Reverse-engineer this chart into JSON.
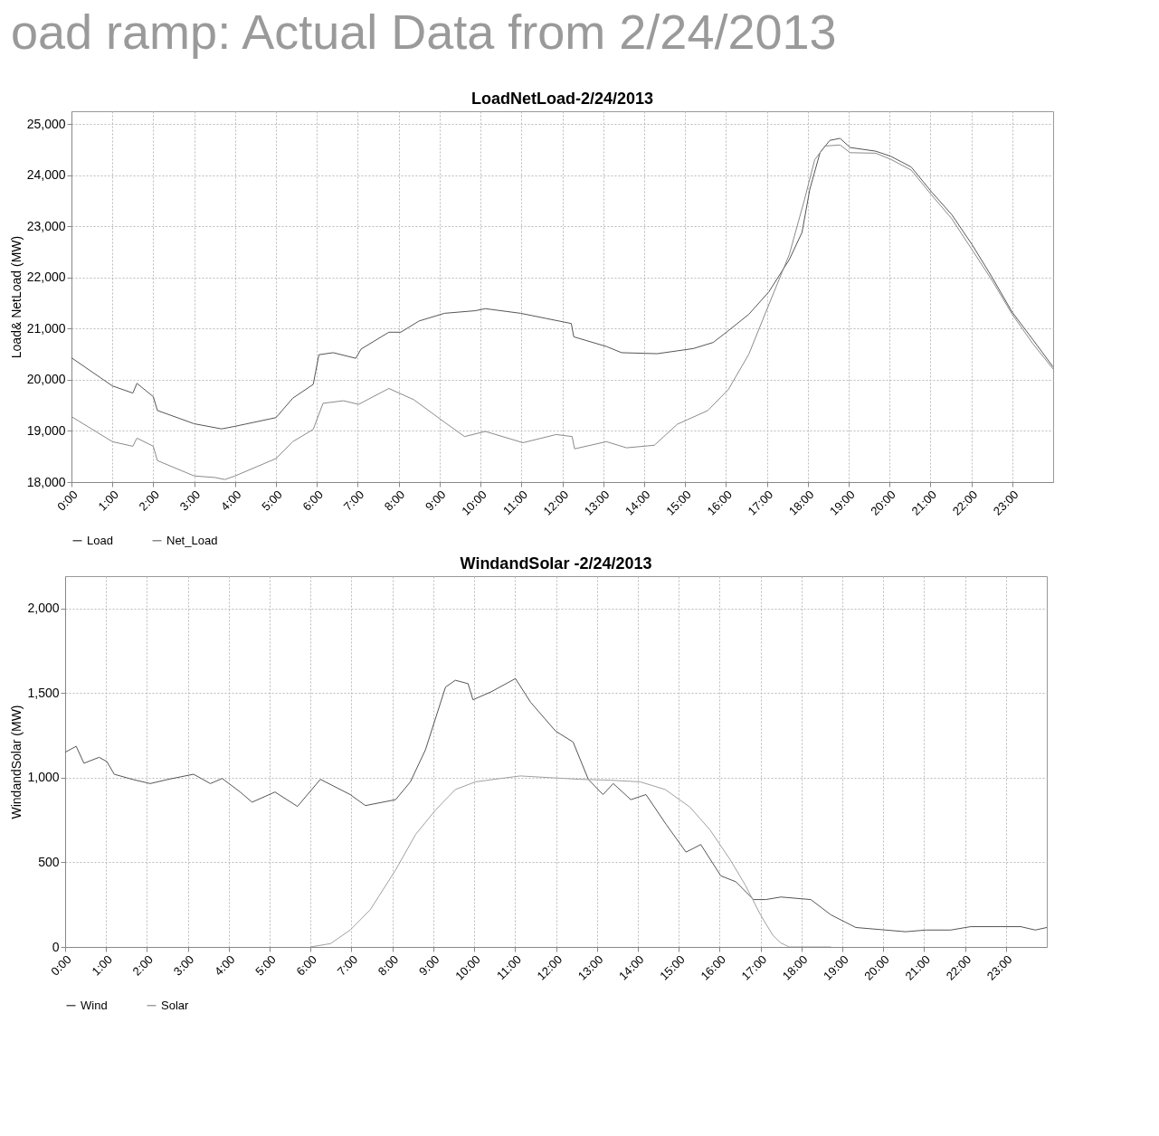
{
  "chart_data": [
    {
      "type": "other",
      "title": "oad ramp: Actual Data from 2/24/2013"
    },
    {
      "type": "line",
      "title": "LoadNetLoad-2/24/2013",
      "ylabel": "Load& NetLoad (MW)",
      "xlim": [
        0,
        24
      ],
      "xticks": [
        {
          "value": 0,
          "label": "0:00"
        },
        {
          "value": 1,
          "label": "1:00"
        },
        {
          "value": 2,
          "label": "2:00"
        },
        {
          "value": 3,
          "label": "3:00"
        },
        {
          "value": 4,
          "label": "4:00"
        },
        {
          "value": 5,
          "label": "5:00"
        },
        {
          "value": 6,
          "label": "6:00"
        },
        {
          "value": 7,
          "label": "7:00"
        },
        {
          "value": 8,
          "label": "8:00"
        },
        {
          "value": 9,
          "label": "9:00"
        },
        {
          "value": 10,
          "label": "10:00"
        },
        {
          "value": 11,
          "label": "11:00"
        },
        {
          "value": 12,
          "label": "12:00"
        },
        {
          "value": 13,
          "label": "13:00"
        },
        {
          "value": 14,
          "label": "14:00"
        },
        {
          "value": 15,
          "label": "15:00"
        },
        {
          "value": 16,
          "label": "16:00"
        },
        {
          "value": 17,
          "label": "17:00"
        },
        {
          "value": 18,
          "label": "18:00"
        },
        {
          "value": 19,
          "label": "19:00"
        },
        {
          "value": 20,
          "label": "20:00"
        },
        {
          "value": 21,
          "label": "21:00"
        },
        {
          "value": 22,
          "label": "22:00"
        },
        {
          "value": 23,
          "label": "23:00"
        }
      ],
      "ylim": [
        18000,
        25250
      ],
      "yticks": [
        {
          "value": 18000,
          "label": "18,000"
        },
        {
          "value": 19000,
          "label": "19,000"
        },
        {
          "value": 20000,
          "label": "20,000"
        },
        {
          "value": 21000,
          "label": "21,000"
        },
        {
          "value": 22000,
          "label": "22,000"
        },
        {
          "value": 23000,
          "label": "23,000"
        },
        {
          "value": 24000,
          "label": "24,000"
        },
        {
          "value": 25000,
          "label": "25,000"
        }
      ],
      "grid": true,
      "legend": "bottom",
      "series": [
        {
          "name": "Load",
          "color": "#555555",
          "x": [
            0,
            1,
            1.5,
            1.6,
            2,
            2.1,
            3,
            3.67,
            4,
            5,
            5.41,
            5.91,
            6.05,
            6.4,
            6.95,
            7.08,
            7.76,
            8.05,
            8.5,
            9.12,
            9.87,
            10.12,
            10.98,
            11.6,
            12.22,
            12.28,
            13.08,
            13.45,
            14.32,
            15.2,
            15.69,
            16.06,
            16.56,
            17.05,
            17.55,
            17.86,
            18.05,
            18.3,
            18.54,
            18.79,
            19.04,
            19.66,
            20.03,
            20.53,
            21.03,
            21.52,
            22.02,
            22.51,
            23.0,
            23.5,
            24.0
          ],
          "values": [
            20430,
            19880,
            19740,
            19930,
            19670,
            19400,
            19140,
            19040,
            19090,
            19260,
            19640,
            19910,
            20490,
            20530,
            20420,
            20600,
            20930,
            20930,
            21150,
            21300,
            21350,
            21390,
            21300,
            21200,
            21100,
            20840,
            20650,
            20530,
            20510,
            20610,
            20730,
            20960,
            21280,
            21720,
            22350,
            22880,
            23720,
            24440,
            24680,
            24720,
            24540,
            24470,
            24370,
            24160,
            23670,
            23230,
            22640,
            22000,
            21320,
            20790,
            20250
          ]
        },
        {
          "name": "Net_Load",
          "color": "#8a8a8a",
          "x": [
            0,
            1,
            1.5,
            1.6,
            2,
            2.1,
            3,
            3.5,
            3.75,
            4,
            5,
            5.41,
            5.91,
            6.15,
            6.65,
            7.02,
            7.76,
            8.37,
            9.12,
            9.61,
            10.12,
            11.04,
            11.85,
            12.24,
            12.3,
            13.08,
            13.57,
            14.25,
            14.81,
            15.56,
            16.06,
            16.56,
            17.05,
            17.55,
            17.92,
            18.17,
            18.42,
            18.79,
            19.04,
            19.66,
            20.03,
            20.53,
            21.03,
            21.52,
            22.02,
            22.51,
            23.0,
            23.5,
            24.0
          ],
          "values": [
            19280,
            18790,
            18700,
            18860,
            18700,
            18420,
            18120,
            18090,
            18050,
            18120,
            18460,
            18790,
            19030,
            19540,
            19590,
            19520,
            19830,
            19610,
            19170,
            18890,
            18990,
            18770,
            18930,
            18890,
            18650,
            18790,
            18670,
            18720,
            19130,
            19400,
            19810,
            20500,
            21470,
            22450,
            23520,
            24300,
            24570,
            24590,
            24440,
            24430,
            24310,
            24100,
            23610,
            23150,
            22540,
            21940,
            21280,
            20710,
            20210
          ]
        }
      ]
    },
    {
      "type": "line",
      "title": "WindandSolar -2/24/2013",
      "ylabel": "WindandSolar (MW)",
      "xlim": [
        0,
        24
      ],
      "xticks": [
        {
          "value": 0,
          "label": "0:00"
        },
        {
          "value": 1,
          "label": "1:00"
        },
        {
          "value": 2,
          "label": "2:00"
        },
        {
          "value": 3,
          "label": "3:00"
        },
        {
          "value": 4,
          "label": "4:00"
        },
        {
          "value": 5,
          "label": "5:00"
        },
        {
          "value": 6,
          "label": "6:00"
        },
        {
          "value": 7,
          "label": "7:00"
        },
        {
          "value": 8,
          "label": "8:00"
        },
        {
          "value": 9,
          "label": "9:00"
        },
        {
          "value": 10,
          "label": "10:00"
        },
        {
          "value": 11,
          "label": "11:00"
        },
        {
          "value": 12,
          "label": "12:00"
        },
        {
          "value": 13,
          "label": "13:00"
        },
        {
          "value": 14,
          "label": "14:00"
        },
        {
          "value": 15,
          "label": "15:00"
        },
        {
          "value": 16,
          "label": "16:00"
        },
        {
          "value": 17,
          "label": "17:00"
        },
        {
          "value": 18,
          "label": "18:00"
        },
        {
          "value": 19,
          "label": "19:00"
        },
        {
          "value": 20,
          "label": "20:00"
        },
        {
          "value": 21,
          "label": "21:00"
        },
        {
          "value": 22,
          "label": "22:00"
        },
        {
          "value": 23,
          "label": "23:00"
        }
      ],
      "ylim": [
        0,
        2190
      ],
      "yticks": [
        0,
        500,
        {
          "value": 1000,
          "label": "1,000"
        },
        {
          "value": 1500,
          "label": "1,500"
        },
        {
          "value": 2000,
          "label": "2,000"
        }
      ],
      "grid": true,
      "legend": "bottom",
      "series": [
        {
          "name": "Wind",
          "color": "#555555",
          "x": [
            0,
            0.27,
            0.46,
            0.83,
            1.02,
            1.2,
            1.64,
            2.08,
            2.52,
            3.14,
            3.55,
            3.84,
            4.28,
            4.57,
            5.13,
            5.68,
            6.24,
            6.97,
            7.34,
            8.08,
            8.44,
            8.81,
            9.3,
            9.54,
            9.85,
            9.97,
            10.4,
            11.01,
            11.38,
            11.99,
            12.42,
            12.79,
            13.15,
            13.4,
            13.83,
            14.2,
            14.69,
            15.18,
            15.54,
            16.03,
            16.4,
            16.83,
            17.13,
            17.5,
            18.23,
            18.72,
            19.33,
            20.06,
            20.55,
            21.04,
            21.65,
            22.14,
            22.87,
            23.36,
            23.72,
            24.0
          ],
          "values": [
            1150,
            1185,
            1085,
            1120,
            1095,
            1020,
            990,
            965,
            990,
            1020,
            965,
            995,
            915,
            855,
            915,
            830,
            990,
            900,
            835,
            870,
            975,
            1165,
            1535,
            1575,
            1555,
            1460,
            1505,
            1585,
            1445,
            1275,
            1210,
            990,
            900,
            965,
            870,
            900,
            725,
            560,
            605,
            420,
            385,
            280,
            280,
            295,
            280,
            190,
            115,
            100,
            90,
            100,
            100,
            120,
            120,
            120,
            100,
            115
          ]
        },
        {
          "name": "Solar",
          "color": "#a0a0a0",
          "x": [
            6.0,
            6.49,
            6.97,
            7.46,
            8.08,
            8.57,
            9.06,
            9.54,
            10.03,
            10.64,
            11.13,
            11.86,
            12.6,
            13.33,
            14.06,
            14.67,
            15.28,
            15.77,
            16.26,
            16.63,
            17.0,
            17.3,
            17.49,
            17.7,
            18.72
          ],
          "values": [
            0,
            20,
            100,
            220,
            455,
            665,
            810,
            930,
            975,
            995,
            1010,
            1000,
            990,
            985,
            975,
            930,
            825,
            690,
            515,
            365,
            190,
            70,
            25,
            0,
            0
          ]
        }
      ]
    }
  ]
}
